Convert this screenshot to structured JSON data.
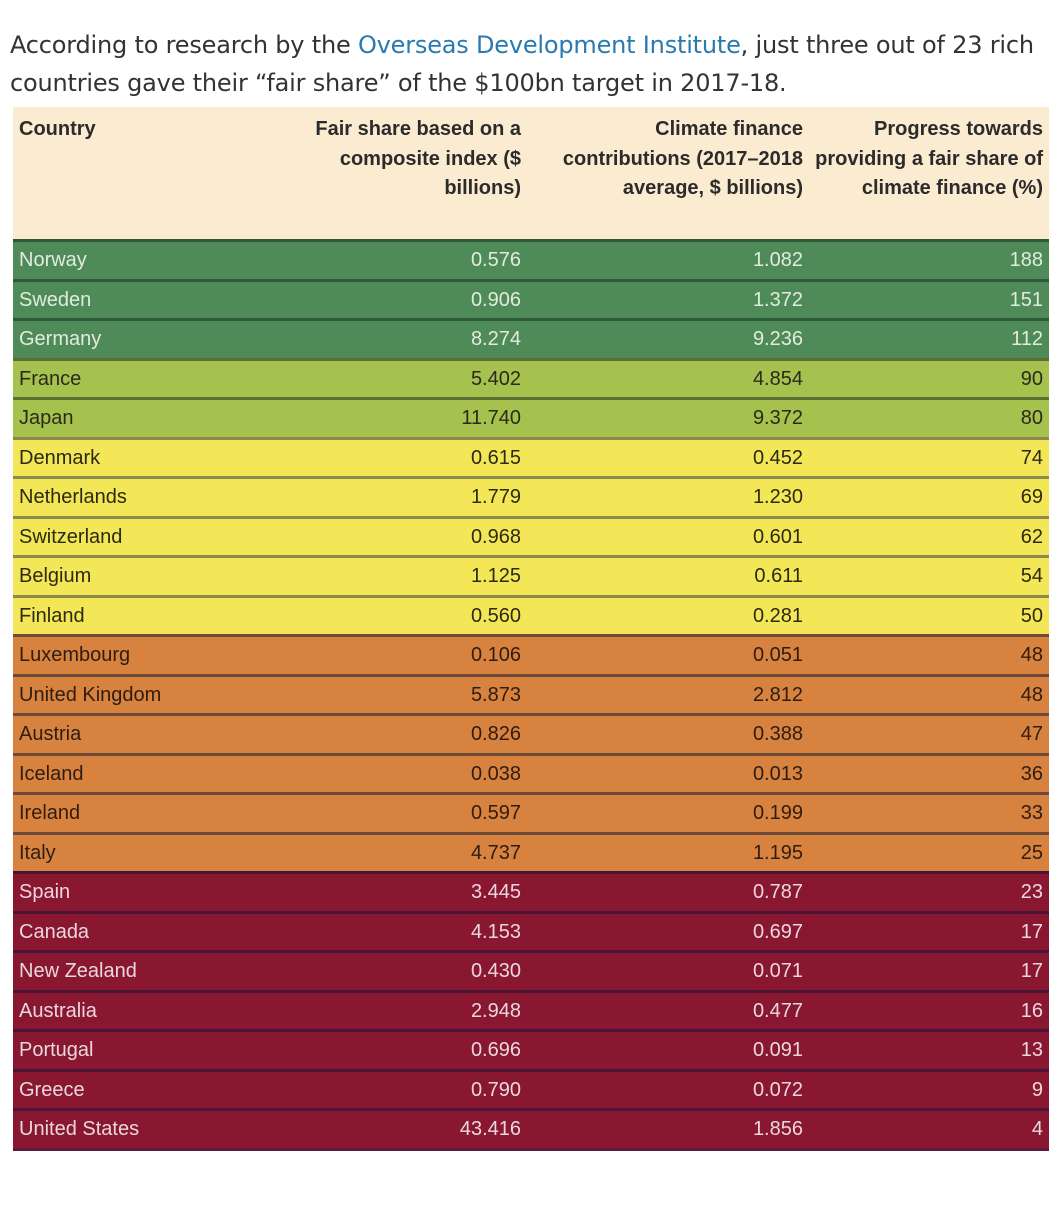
{
  "intro": {
    "before_link": "According to research by the ",
    "link_text": "Overseas Development Institute",
    "after_link": ", just three out of 23 rich countries gave their “fair share” of the $100bn target in 2017-18."
  },
  "colors": {
    "header_bg": "#fbebd0",
    "link": "#2a7ab0",
    "tier_darkgreen": "#4f8b58",
    "tier_lightgreen": "#a6c24e",
    "tier_yellow": "#f3e657",
    "tier_orange": "#d8823f",
    "tier_red": "#8a1730"
  },
  "table": {
    "headers": {
      "country": "Country",
      "fair_share": "Fair share based on a composite index ($ billions)",
      "contributions": "Climate finance contributions (2017–2018 average, $ billions)",
      "progress": "Progress towards providing a fair share of climate finance (%)"
    },
    "rows": [
      {
        "country": "Norway",
        "fair_share": "0.576",
        "contributions": "1.082",
        "progress": "188",
        "tier": "darkgreen"
      },
      {
        "country": "Sweden",
        "fair_share": "0.906",
        "contributions": "1.372",
        "progress": "151",
        "tier": "darkgreen"
      },
      {
        "country": "Germany",
        "fair_share": "8.274",
        "contributions": "9.236",
        "progress": "112",
        "tier": "darkgreen"
      },
      {
        "country": "France",
        "fair_share": "5.402",
        "contributions": "4.854",
        "progress": "90",
        "tier": "lightgreen"
      },
      {
        "country": "Japan",
        "fair_share": "11.740",
        "contributions": "9.372",
        "progress": "80",
        "tier": "lightgreen"
      },
      {
        "country": "Denmark",
        "fair_share": "0.615",
        "contributions": "0.452",
        "progress": "74",
        "tier": "yellow"
      },
      {
        "country": "Netherlands",
        "fair_share": "1.779",
        "contributions": "1.230",
        "progress": "69",
        "tier": "yellow"
      },
      {
        "country": "Switzerland",
        "fair_share": "0.968",
        "contributions": "0.601",
        "progress": "62",
        "tier": "yellow"
      },
      {
        "country": "Belgium",
        "fair_share": "1.125",
        "contributions": "0.611",
        "progress": "54",
        "tier": "yellow"
      },
      {
        "country": "Finland",
        "fair_share": "0.560",
        "contributions": "0.281",
        "progress": "50",
        "tier": "yellow"
      },
      {
        "country": "Luxembourg",
        "fair_share": "0.106",
        "contributions": "0.051",
        "progress": "48",
        "tier": "orange"
      },
      {
        "country": "United Kingdom",
        "fair_share": "5.873",
        "contributions": "2.812",
        "progress": "48",
        "tier": "orange"
      },
      {
        "country": "Austria",
        "fair_share": "0.826",
        "contributions": "0.388",
        "progress": "47",
        "tier": "orange"
      },
      {
        "country": "Iceland",
        "fair_share": "0.038",
        "contributions": "0.013",
        "progress": "36",
        "tier": "orange"
      },
      {
        "country": "Ireland",
        "fair_share": "0.597",
        "contributions": "0.199",
        "progress": "33",
        "tier": "orange"
      },
      {
        "country": "Italy",
        "fair_share": "4.737",
        "contributions": "1.195",
        "progress": "25",
        "tier": "orange"
      },
      {
        "country": "Spain",
        "fair_share": "3.445",
        "contributions": "0.787",
        "progress": "23",
        "tier": "red"
      },
      {
        "country": "Canada",
        "fair_share": "4.153",
        "contributions": "0.697",
        "progress": "17",
        "tier": "red"
      },
      {
        "country": "New Zealand",
        "fair_share": "0.430",
        "contributions": "0.071",
        "progress": "17",
        "tier": "red"
      },
      {
        "country": "Australia",
        "fair_share": "2.948",
        "contributions": "0.477",
        "progress": "16",
        "tier": "red"
      },
      {
        "country": "Portugal",
        "fair_share": "0.696",
        "contributions": "0.091",
        "progress": "13",
        "tier": "red"
      },
      {
        "country": "Greece",
        "fair_share": "0.790",
        "contributions": "0.072",
        "progress": "9",
        "tier": "red"
      },
      {
        "country": "United States",
        "fair_share": "43.416",
        "contributions": "1.856",
        "progress": "4",
        "tier": "red"
      }
    ]
  }
}
